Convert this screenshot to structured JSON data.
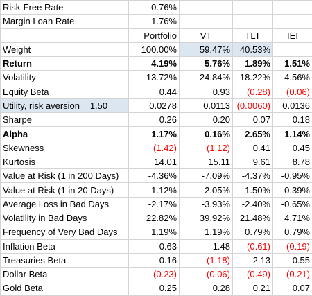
{
  "inputs": [
    [
      "Risk-Free Rate",
      "0.76%"
    ],
    [
      "Margin Loan Rate",
      "1.76%"
    ]
  ],
  "header": [
    "",
    "Portfolio",
    "VT",
    "TLT",
    "IEI"
  ],
  "rows": [
    {
      "cells": [
        "Weight",
        "100.00%",
        "59.47%",
        "40.53%",
        ""
      ],
      "highlight": [
        2,
        3
      ]
    },
    {
      "cells": [
        "Return",
        "4.19%",
        "5.76%",
        "1.89%",
        "1.51%"
      ],
      "bold": true
    },
    {
      "cells": [
        "Volatility",
        "13.72%",
        "24.84%",
        "18.22%",
        "4.56%"
      ]
    },
    {
      "cells": [
        "Equity Beta",
        "0.44",
        "0.93",
        "(0.28)",
        "(0.06)"
      ]
    },
    {
      "cells": [
        "Utility, risk aversion = 1.50",
        "0.0278",
        "0.0113",
        "(0.0060)",
        "0.0136"
      ],
      "highlight": [
        0
      ]
    },
    {
      "cells": [
        "Sharpe",
        "0.26",
        "0.20",
        "0.07",
        "0.18"
      ]
    },
    {
      "cells": [
        "Alpha",
        "1.17%",
        "0.16%",
        "2.65%",
        "1.14%"
      ],
      "bold": true
    },
    {
      "cells": [
        "Skewness",
        "(1.42)",
        "(1.12)",
        "0.41",
        "0.45"
      ]
    },
    {
      "cells": [
        "Kurtosis",
        "14.01",
        "15.11",
        "9.61",
        "8.78"
      ]
    },
    {
      "cells": [
        "Value at Risk (1 in 200 Days)",
        "-4.36%",
        "-7.09%",
        "-4.37%",
        "-0.95%"
      ]
    },
    {
      "cells": [
        "Value at Risk (1 in 20 Days)",
        "-1.12%",
        "-2.05%",
        "-1.50%",
        "-0.39%"
      ]
    },
    {
      "cells": [
        "Average Loss in Bad Days",
        "-2.17%",
        "-3.93%",
        "-2.40%",
        "-0.65%"
      ]
    },
    {
      "cells": [
        "Volatility in Bad Days",
        "22.82%",
        "39.92%",
        "21.48%",
        "4.71%"
      ]
    },
    {
      "cells": [
        "Frequency of Very Bad Days",
        "1.19%",
        "1.19%",
        "0.79%",
        "0.79%"
      ]
    },
    {
      "cells": [
        "Inflation Beta",
        "0.63",
        "1.48",
        "(0.61)",
        "(0.19)"
      ]
    },
    {
      "cells": [
        "Treasuries Beta",
        "0.16",
        "(1.18)",
        "2.13",
        "0.55"
      ]
    },
    {
      "cells": [
        "Dollar Beta",
        "(0.23)",
        "(0.06)",
        "(0.49)",
        "(0.21)"
      ]
    },
    {
      "cells": [
        "Gold Beta",
        "0.25",
        "0.28",
        "0.21",
        "0.07"
      ]
    }
  ]
}
